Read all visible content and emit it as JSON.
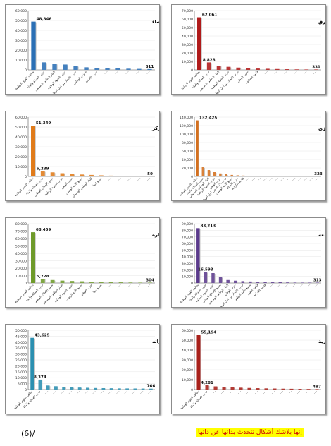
{
  "chart_data": [
    {
      "type": "bar",
      "title": "نتائج الأصوات لدائرة البيضاء",
      "color": "#2a6fb5",
      "ylim": [
        0,
        60000
      ],
      "yticks": [
        "60,000",
        "50,000",
        "40,000",
        "30,000",
        "20,000",
        "10,000",
        "0"
      ],
      "categories": [
        "تحالف القوى الوطنية",
        "حزب العدالة والبناء",
        "التيار الوطني الوسطي",
        "حزب الجبهة الوطنية",
        "حزب الاتحاد من أجل الوطن",
        "الحزب الوطني",
        "حزب الأصالة",
        "",
        "",
        "",
        "",
        ""
      ],
      "values": [
        48846,
        7600,
        6200,
        5400,
        3900,
        2600,
        2100,
        1800,
        1500,
        1200,
        1000,
        811
      ],
      "data_labels": [
        {
          "index": 0,
          "text": "48,846"
        },
        {
          "index": 11,
          "text": "811"
        }
      ]
    },
    {
      "type": "bar",
      "title": "نتائج الأصوات لدائرة طبرق",
      "color": "#b01a1a",
      "ylim": [
        0,
        70000
      ],
      "yticks": [
        "70,000",
        "60,000",
        "50,000",
        "40,000",
        "30,000",
        "20,000",
        "10,000",
        "0"
      ],
      "categories": [
        "تحالف القوى الوطنية",
        "حزب العدالة والبناء",
        "التيار الوطني الوسطي",
        "حزب الجبهة الوطنية",
        "حزب الاتحاد من أجل الوطن",
        "حزب الوطن",
        "قائمة التحالف",
        "",
        "",
        "",
        "",
        "",
        ""
      ],
      "values": [
        62061,
        8828,
        4800,
        3600,
        2700,
        2000,
        1600,
        1300,
        1000,
        800,
        600,
        450,
        331
      ],
      "data_labels": [
        {
          "index": 0,
          "text": "62,061"
        },
        {
          "index": 1,
          "text": "8,828"
        },
        {
          "index": 12,
          "text": "331"
        }
      ]
    },
    {
      "type": "bar",
      "title": "نتائج الأصوات لدائرة طرابلس المركز",
      "color": "#e07b1a",
      "ylim": [
        0,
        60000
      ],
      "yticks": [
        "60,000",
        "50,000",
        "40,000",
        "30,000",
        "20,000",
        "10,000",
        "0"
      ],
      "categories": [
        "تحالف القوى الوطنية",
        "حزب العدالة والبناء",
        "تجمع الإصلاح الوطني",
        "حزب الجبهة الوطنية",
        "حزب الوطن",
        "تجمع الأمة الوطني",
        "التيار الوطني الوسطي",
        "تجمع ليبيا",
        "",
        "",
        "",
        "",
        ""
      ],
      "values": [
        51349,
        5239,
        4100,
        3200,
        2500,
        1900,
        1500,
        1100,
        800,
        500,
        300,
        150,
        59
      ],
      "data_labels": [
        {
          "index": 0,
          "text": "51,349"
        },
        {
          "index": 1,
          "text": "5,239"
        },
        {
          "index": 12,
          "text": "59"
        }
      ]
    },
    {
      "type": "bar",
      "title": "نتائج الأصوات لدائرة بنغازي",
      "color": "#d4701e",
      "ylim": [
        0,
        140000
      ],
      "yticks": [
        "140,000",
        "120,000",
        "100,000",
        "80,000",
        "60,000",
        "40,000",
        "20,000",
        "0"
      ],
      "categories": [
        "تحالف القوى الوطنية",
        "حزب العدالة والبناء",
        "التيار الوطني الوسطي",
        "حزب الجبهة الوطنية",
        "حزب الوطن",
        "حزب الاتحاد من أجل الوطن",
        "تجمع الأمة الوطني",
        "حزب الأصالة",
        "قائمة الكرامة",
        "",
        "",
        "",
        "",
        "",
        "",
        "",
        "",
        "",
        "",
        "",
        "",
        ""
      ],
      "values": [
        132425,
        22000,
        15000,
        10000,
        7000,
        5000,
        3500,
        2600,
        2000,
        1600,
        1300,
        1100,
        950,
        850,
        750,
        650,
        580,
        500,
        450,
        400,
        360,
        323
      ],
      "data_labels": [
        {
          "index": 0,
          "text": "132,425"
        },
        {
          "index": 21,
          "text": "323"
        }
      ]
    },
    {
      "type": "bar",
      "title": "نتائج الأصوات لدائرة عين زارة",
      "color": "#6e9a2a",
      "ylim": [
        0,
        80000
      ],
      "yticks": [
        "80,000",
        "70,000",
        "60,000",
        "50,000",
        "40,000",
        "30,000",
        "20,000",
        "10,000",
        "0"
      ],
      "categories": [
        "تحالف القوى الوطنية",
        "حزب العدالة والبناء",
        "تجمع الإصلاح الوطني",
        "التيار الوطني الوسطي",
        "حزب الجبهة الوطنية",
        "تجمع الأمة الوطني",
        "حزب الوطن",
        "تجمع ليبيا",
        "",
        "",
        "",
        "",
        ""
      ],
      "values": [
        68459,
        5728,
        4000,
        3200,
        2700,
        2300,
        1900,
        1500,
        1200,
        900,
        700,
        500,
        304
      ],
      "data_labels": [
        {
          "index": 0,
          "text": "68,459"
        },
        {
          "index": 1,
          "text": "5,728"
        },
        {
          "index": 12,
          "text": "304"
        }
      ]
    },
    {
      "type": "bar",
      "title": "نتائج الأصوات لدائرة سوق الجمعة",
      "color": "#5b3a8c",
      "ylim": [
        0,
        90000
      ],
      "yticks": [
        "90,000",
        "80,000",
        "70,000",
        "60,000",
        "50,000",
        "40,000",
        "30,000",
        "20,000",
        "10,000",
        "0"
      ],
      "categories": [
        "تحالف القوى الوطنية",
        "حزب العدالة والبناء",
        "حزب الجبهة الوطنية",
        "تجمع الإصلاح الوطني",
        "التيار الوطني الوسطي",
        "حزب الوطن",
        "حزب الاتحاد من أجل الوطن",
        "تجمع الأمة الوطني",
        "قائمة التغيير",
        "قائمة الكرامة",
        "",
        "",
        "",
        "",
        "",
        "",
        ""
      ],
      "values": [
        83213,
        16593,
        15000,
        9000,
        4500,
        3500,
        2800,
        2300,
        1900,
        1600,
        1300,
        1100,
        900,
        700,
        550,
        420,
        313
      ],
      "data_labels": [
        {
          "index": 0,
          "text": "83,213"
        },
        {
          "index": 1,
          "text": "16,593"
        },
        {
          "index": 16,
          "text": "313"
        }
      ]
    },
    {
      "type": "bar",
      "title": "نتائج الأصوات لدائرة صبراته",
      "color": "#2b8fb0",
      "ylim": [
        0,
        50000
      ],
      "yticks": [
        "50,000",
        "45,000",
        "40,000",
        "35,000",
        "30,000",
        "25,000",
        "20,000",
        "15,000",
        "10,000",
        "5,000",
        "0"
      ],
      "categories": [
        "تحالف القوى الوطنية",
        "حزب العدالة والبناء",
        "",
        "",
        "",
        "",
        "",
        "",
        "",
        "",
        "",
        "",
        "",
        "",
        "",
        ""
      ],
      "values": [
        43625,
        8374,
        3400,
        2800,
        2300,
        2000,
        1700,
        1500,
        1300,
        1200,
        1100,
        1000,
        950,
        900,
        850,
        766
      ],
      "data_labels": [
        {
          "index": 0,
          "text": "43,625"
        },
        {
          "index": 1,
          "text": "8,374"
        },
        {
          "index": 15,
          "text": "766"
        }
      ]
    },
    {
      "type": "bar",
      "title": "نتائج الأصوات لدائرة العزيزية",
      "color": "#a8201a",
      "ylim": [
        0,
        60000
      ],
      "yticks": [
        "60,000",
        "50,000",
        "40,000",
        "30,000",
        "20,000",
        "10,000",
        "0"
      ],
      "categories": [
        "تحالف القوى الوطنية",
        "حزب العدالة والبناء",
        "",
        "",
        "",
        "",
        "",
        "",
        "",
        "",
        "",
        "",
        "",
        "",
        ""
      ],
      "values": [
        55194,
        4281,
        3200,
        2600,
        2200,
        1900,
        1600,
        1400,
        1200,
        1050,
        900,
        800,
        700,
        600,
        487
      ],
      "data_labels": [
        {
          "index": 0,
          "text": "55,194"
        },
        {
          "index": 1,
          "text": "4,281"
        },
        {
          "index": 14,
          "text": "487"
        }
      ]
    }
  ],
  "footer": {
    "page_number": "(6)/",
    "slogan": "إنها بلاشك أشكال تتحدث بذاتها عن ذاتها"
  }
}
